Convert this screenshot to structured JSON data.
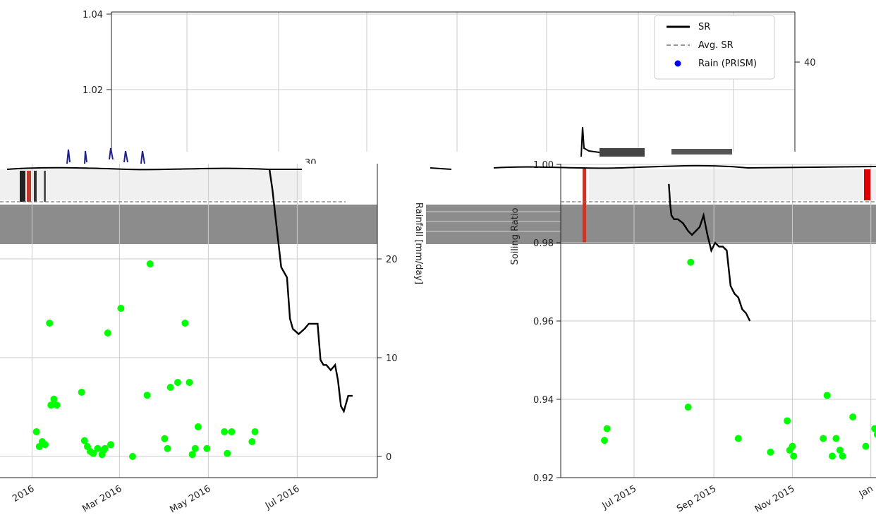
{
  "legend": [
    "SR",
    "Avg. SR",
    "Rain (PRISM)"
  ],
  "labels": {
    "rain_ylabel": "Rainfall [mm/day]",
    "right_ylabel": "Soiling Ratio"
  },
  "colors": {
    "sr_line": "#000000",
    "avg_line": "#777777",
    "rain_points_plotted": "#00ff00",
    "rain_legend": "#0000ff",
    "grid": "#cccccc",
    "gray_band": "#8c8c8c"
  },
  "chart_data": [
    {
      "type": "line",
      "panel": "background",
      "y_ticks": [
        1.04,
        1.02
      ],
      "right_ticks": [
        40,
        30
      ],
      "series": [
        {
          "name": "SR",
          "x": [],
          "y": []
        }
      ]
    },
    {
      "type": "line",
      "panel": "left",
      "x_ticks": [
        "2016",
        "Mar 2016",
        "May 2016",
        "Jul 2016"
      ],
      "y2_ticks": [
        0,
        10,
        20
      ],
      "ylabel_right": "Rainfall [mm/day]",
      "series": [
        {
          "name": "SR",
          "x": [
            "2016-06-12",
            "2016-06-14",
            "2016-06-16",
            "2016-06-18",
            "2016-06-20",
            "2016-06-22",
            "2016-06-24",
            "2016-06-26",
            "2016-06-28",
            "2016-07-02",
            "2016-07-06",
            "2016-07-09",
            "2016-07-12",
            "2016-07-15",
            "2016-07-17",
            "2016-07-19",
            "2016-07-21",
            "2016-07-24",
            "2016-07-27",
            "2016-07-29",
            "2016-07-31",
            "2016-08-02",
            "2016-08-05",
            "2016-08-08"
          ],
          "y": [
            0.999,
            0.995,
            0.99,
            0.985,
            0.98,
            0.979,
            0.978,
            0.97,
            0.968,
            0.967,
            0.968,
            0.969,
            0.969,
            0.969,
            0.962,
            0.961,
            0.961,
            0.96,
            0.961,
            0.958,
            0.953,
            0.952,
            0.955,
            0.955
          ]
        },
        {
          "name": "Rain (PRISM)",
          "x": [
            "2016-01-04",
            "2016-01-06",
            "2016-01-08",
            "2016-01-10",
            "2016-01-13",
            "2016-01-14",
            "2016-01-16",
            "2016-01-18",
            "2016-02-04",
            "2016-02-06",
            "2016-02-08",
            "2016-02-10",
            "2016-02-12",
            "2016-02-15",
            "2016-02-18",
            "2016-02-19",
            "2016-02-20",
            "2016-02-22",
            "2016-02-24",
            "2016-03-02",
            "2016-03-10",
            "2016-03-20",
            "2016-03-22",
            "2016-04-01",
            "2016-04-03",
            "2016-04-05",
            "2016-04-10",
            "2016-04-15",
            "2016-04-18",
            "2016-04-20",
            "2016-04-22",
            "2016-04-24",
            "2016-04-30",
            "2016-05-12",
            "2016-05-14",
            "2016-05-17",
            "2016-05-31",
            "2016-06-02"
          ],
          "y": [
            2.5,
            1.0,
            1.5,
            1.2,
            13.5,
            5.2,
            5.8,
            5.2,
            6.5,
            1.6,
            1.0,
            0.5,
            0.3,
            0.8,
            0.2,
            0.6,
            0.8,
            12.5,
            1.2,
            15.0,
            0.0,
            6.2,
            19.5,
            1.8,
            0.8,
            7.0,
            7.5,
            13.5,
            7.5,
            0.2,
            0.8,
            3.0,
            0.8,
            2.5,
            0.3,
            2.5,
            1.5,
            2.5
          ]
        }
      ]
    },
    {
      "type": "line",
      "panel": "right",
      "x_ticks": [
        "Jul 2015",
        "Sep 2015",
        "Nov 2015",
        "Jan"
      ],
      "y_ticks": [
        0.92,
        0.94,
        0.96,
        0.98,
        1.0
      ],
      "ylabel": "Soiling Ratio",
      "series": [
        {
          "name": "SR",
          "x": [
            "2015-07-28",
            "2015-07-29",
            "2015-07-30",
            "2015-08-01",
            "2015-08-04",
            "2015-08-08",
            "2015-08-10",
            "2015-08-12",
            "2015-08-15",
            "2015-08-18",
            "2015-08-21",
            "2015-08-24",
            "2015-08-27",
            "2015-08-30",
            "2015-09-02",
            "2015-09-05",
            "2015-09-08",
            "2015-09-11",
            "2015-09-14",
            "2015-09-17",
            "2015-09-20",
            "2015-09-23",
            "2015-09-26",
            "2015-09-29"
          ],
          "y": [
            0.995,
            0.99,
            0.987,
            0.986,
            0.986,
            0.985,
            0.984,
            0.983,
            0.982,
            0.983,
            0.984,
            0.987,
            0.982,
            0.978,
            0.98,
            0.979,
            0.979,
            0.978,
            0.969,
            0.967,
            0.966,
            0.963,
            0.962,
            0.96
          ]
        },
        {
          "name": "Rain (PRISM)",
          "x": [
            "2015-06-08",
            "2015-06-10",
            "2015-08-12",
            "2015-08-14",
            "2015-09-20",
            "2015-10-15",
            "2015-10-28",
            "2015-10-30",
            "2015-11-01",
            "2015-11-02",
            "2015-11-25",
            "2015-11-28",
            "2015-12-02",
            "2015-12-05",
            "2015-12-08",
            "2015-12-10",
            "2015-12-18",
            "2015-12-28",
            "2016-01-04",
            "2016-01-06"
          ],
          "y": [
            0.9295,
            0.9325,
            0.938,
            0.975,
            0.93,
            0.9265,
            0.9345,
            0.927,
            0.928,
            0.9255,
            0.93,
            0.941,
            0.9255,
            0.93,
            0.927,
            0.9255,
            0.9355,
            0.928,
            0.9325,
            0.931
          ]
        }
      ]
    }
  ]
}
